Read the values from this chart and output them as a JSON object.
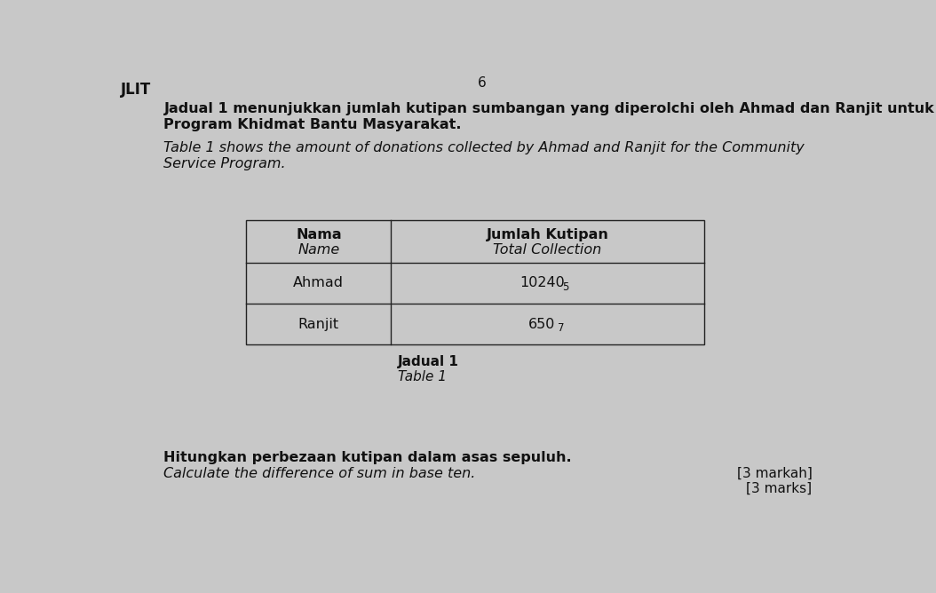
{
  "header_left": "Nama\nName",
  "header_right": "Jumlah Kutipan\nTotal Collection",
  "row1_left": "Ahmad",
  "row1_right": "10240",
  "row1_subscript": "5",
  "row2_left": "Ranjit",
  "row2_right": "650",
  "row2_subscript": "7",
  "table_caption_line1": "Jadual 1",
  "table_caption_line2": "Table 1",
  "para1_line1": "Jadual 1 menunjukkan jumlah kutipan sumbangan yang diperolchi oleh Ahmad dan Ranjit untuk",
  "para1_line2": "Program Khidmat Bantu Masyarakat.",
  "para2_line1": "Table 1 shows the amount of donations collected by Ahmad and Ranjit for the Community",
  "para2_line2": "Service Program.",
  "question_line1": "Hitungkan perbezaan kutipan dalam asas sepuluh.",
  "question_line2": "Calculate the difference of sum in base ten.",
  "marks_line1": "[3 markah]",
  "marks_line2": "[3 marks]",
  "header_label": "JLIT",
  "page_number": "6",
  "bg_color": "#c8c8c8",
  "text_color": "#111111",
  "table_border": "#222222"
}
